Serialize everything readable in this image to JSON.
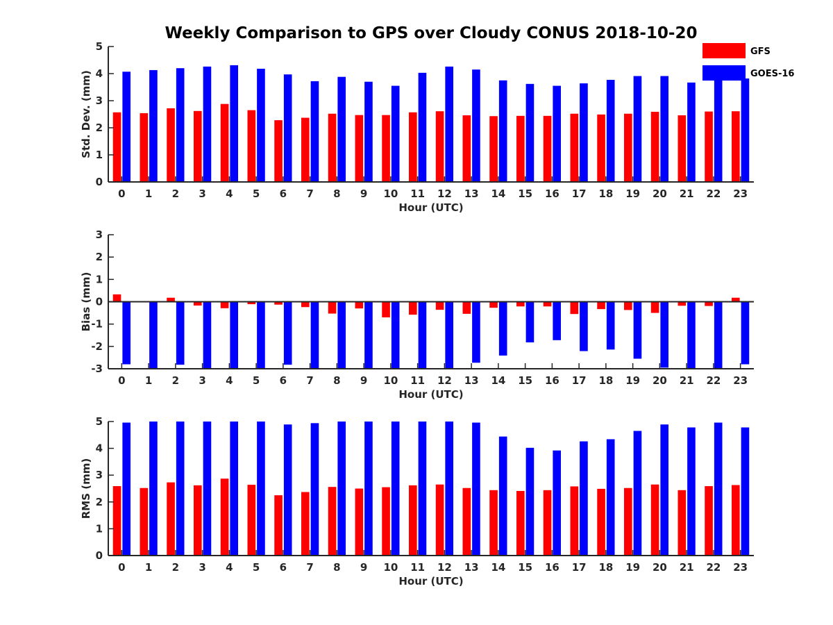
{
  "title": "Weekly Comparison to GPS over Cloudy CONUS 2018-10-20",
  "colors": {
    "GFS": "#ff0000",
    "GOES-16": "#0000ff"
  },
  "legend": [
    "GFS",
    "GOES-16"
  ],
  "chart_data": [
    {
      "type": "bar",
      "ylabel": "Std. Dev. (mm)",
      "xlabel": "Hour (UTC)",
      "ylim": [
        0,
        5
      ],
      "yticks": [
        0,
        1,
        2,
        3,
        4,
        5
      ],
      "zero_line": false,
      "categories": [
        0,
        1,
        2,
        3,
        4,
        5,
        6,
        7,
        8,
        9,
        10,
        11,
        12,
        13,
        14,
        15,
        16,
        17,
        18,
        19,
        20,
        21,
        22,
        23
      ],
      "series": [
        {
          "name": "GFS",
          "values": [
            2.57,
            2.54,
            2.72,
            2.62,
            2.88,
            2.65,
            2.28,
            2.37,
            2.52,
            2.47,
            2.47,
            2.57,
            2.61,
            2.46,
            2.43,
            2.44,
            2.44,
            2.52,
            2.49,
            2.52,
            2.59,
            2.46,
            2.6,
            2.61
          ]
        },
        {
          "name": "GOES-16",
          "values": [
            4.07,
            4.13,
            4.2,
            4.26,
            4.31,
            4.18,
            3.97,
            3.72,
            3.88,
            3.7,
            3.55,
            4.03,
            4.26,
            4.15,
            3.75,
            3.62,
            3.55,
            3.64,
            3.77,
            3.91,
            3.91,
            3.67,
            3.82,
            3.82
          ]
        }
      ]
    },
    {
      "type": "bar",
      "ylabel": "Bias (mm)",
      "xlabel": "Hour (UTC)",
      "ylim": [
        -3,
        3
      ],
      "yticks": [
        -3,
        -2,
        -1,
        0,
        1,
        2,
        3
      ],
      "zero_line": true,
      "categories": [
        0,
        1,
        2,
        3,
        4,
        5,
        6,
        7,
        8,
        9,
        10,
        11,
        12,
        13,
        14,
        15,
        16,
        17,
        18,
        19,
        20,
        21,
        22,
        23
      ],
      "series": [
        {
          "name": "GFS",
          "values": [
            0.33,
            0.02,
            0.18,
            -0.17,
            -0.29,
            -0.11,
            -0.13,
            -0.24,
            -0.53,
            -0.3,
            -0.7,
            -0.58,
            -0.36,
            -0.54,
            -0.27,
            -0.21,
            -0.21,
            -0.55,
            -0.33,
            -0.37,
            -0.5,
            -0.18,
            -0.19,
            0.18
          ]
        },
        {
          "name": "GOES-16",
          "values": [
            -2.8,
            -3.0,
            -2.82,
            -3.0,
            -3.0,
            -3.0,
            -2.82,
            -3.0,
            -3.0,
            -3.0,
            -3.0,
            -3.0,
            -2.98,
            -2.73,
            -2.41,
            -1.82,
            -1.72,
            -2.21,
            -2.14,
            -2.55,
            -2.95,
            -3.0,
            -3.0,
            -2.8
          ]
        }
      ]
    },
    {
      "type": "bar",
      "ylabel": "RMS (mm)",
      "xlabel": "Hour (UTC)",
      "ylim": [
        0,
        5
      ],
      "yticks": [
        0,
        1,
        2,
        3,
        4,
        5
      ],
      "zero_line": false,
      "categories": [
        0,
        1,
        2,
        3,
        4,
        5,
        6,
        7,
        8,
        9,
        10,
        11,
        12,
        13,
        14,
        15,
        16,
        17,
        18,
        19,
        20,
        21,
        22,
        23
      ],
      "series": [
        {
          "name": "GFS",
          "values": [
            2.59,
            2.52,
            2.73,
            2.62,
            2.87,
            2.64,
            2.25,
            2.37,
            2.56,
            2.5,
            2.55,
            2.62,
            2.65,
            2.52,
            2.44,
            2.41,
            2.44,
            2.58,
            2.49,
            2.52,
            2.65,
            2.44,
            2.59,
            2.63
          ]
        },
        {
          "name": "GOES-16",
          "values": [
            4.96,
            5.0,
            5.0,
            5.0,
            5.0,
            5.0,
            4.89,
            4.94,
            5.0,
            5.0,
            5.0,
            5.0,
            5.0,
            4.96,
            4.44,
            4.02,
            3.92,
            4.26,
            4.34,
            4.65,
            4.89,
            4.78,
            4.96,
            4.78
          ]
        }
      ]
    }
  ]
}
